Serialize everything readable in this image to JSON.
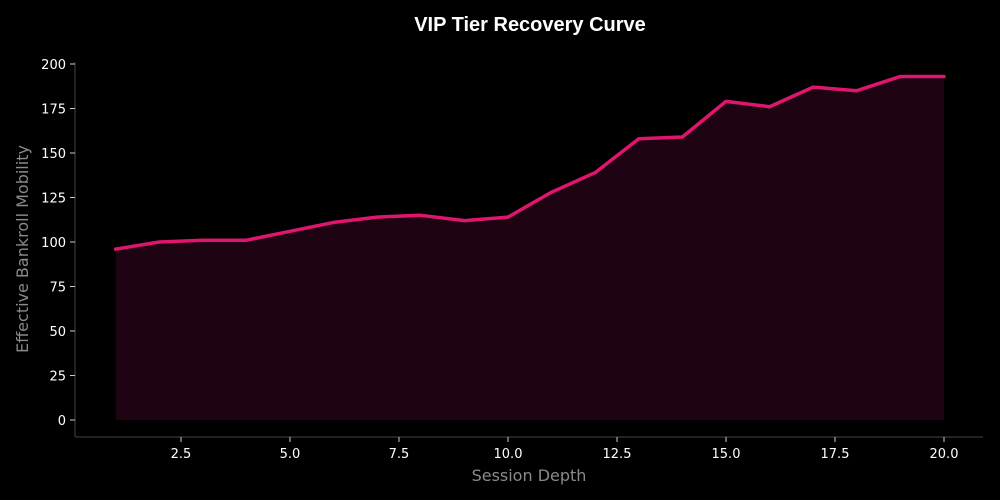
{
  "chart_data": {
    "type": "area",
    "title": "VIP Tier Recovery Curve",
    "xlabel": "Session Depth",
    "ylabel": "Effective Bankroll Mobility",
    "x": [
      1,
      2,
      3,
      4,
      5,
      6,
      7,
      8,
      9,
      10,
      11,
      12,
      13,
      14,
      15,
      16,
      17,
      18,
      19,
      20
    ],
    "series": [
      {
        "name": "Effective Bankroll Mobility",
        "values": [
          96,
          100,
          101,
          101,
          106,
          111,
          114,
          115,
          112,
          114,
          128,
          139,
          158,
          159,
          179,
          176,
          187,
          185,
          193,
          193
        ],
        "color": "#e0156e",
        "fill": "#1e0412"
      }
    ],
    "xticks": [
      "2.5",
      "5.0",
      "7.5",
      "10.0",
      "12.5",
      "15.0",
      "17.5",
      "20.0"
    ],
    "yticks": [
      "0",
      "25",
      "50",
      "75",
      "100",
      "125",
      "150",
      "175",
      "200"
    ],
    "xlim": [
      0.1,
      21.0
    ],
    "ylim": [
      -10,
      200
    ],
    "grid": false,
    "legend": null
  },
  "colors": {
    "background": "#000000",
    "axis": "#444444",
    "line": "#e0156e",
    "fill": "#1e0412"
  }
}
